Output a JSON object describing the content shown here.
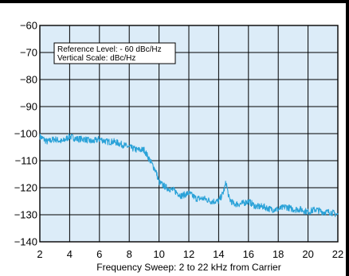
{
  "chart_data": {
    "type": "line",
    "title": "",
    "xlabel": "Frequency Sweep: 2 to 22 kHz from Carrier",
    "ylabel": "",
    "xlim": [
      2,
      22
    ],
    "ylim": [
      -140,
      -60
    ],
    "x_ticks": [
      2,
      4,
      6,
      8,
      10,
      12,
      14,
      16,
      18,
      20,
      22
    ],
    "y_ticks": [
      -60,
      -70,
      -80,
      -90,
      -100,
      -110,
      -120,
      -130,
      -140
    ],
    "x_tick_labels": [
      "2",
      "4",
      "6",
      "8",
      "10",
      "12",
      "14",
      "16",
      "18",
      "20",
      "22"
    ],
    "y_tick_labels": [
      "−60",
      "−70",
      "−80",
      "−90",
      "−100",
      "−110",
      "−120",
      "−130",
      "−140"
    ],
    "grid": true,
    "annotations": [
      "Reference Level: - 60 dBc/Hz",
      "Vertical Scale: dBc/Hz"
    ],
    "colors": {
      "plot_background": "#dcecf8",
      "trace": "#2aa2d8",
      "grid": "#000000"
    },
    "series": [
      {
        "x": [
          2.0,
          2.5,
          3.0,
          3.5,
          4.0,
          4.5,
          5.0,
          5.5,
          6.0,
          6.5,
          7.0,
          7.5,
          8.0,
          8.5,
          9.0,
          9.2,
          9.4,
          9.6,
          9.8,
          10.0,
          10.5,
          11.0,
          11.5,
          12.0,
          12.5,
          13.0,
          13.5,
          14.0,
          14.3,
          14.5,
          14.7,
          15.0,
          15.5,
          16.0,
          16.5,
          17.0,
          17.5,
          18.0,
          18.5,
          19.0,
          19.5,
          20.0,
          20.5,
          21.0,
          21.5,
          22.0
        ],
        "values": [
          -101,
          -103,
          -102,
          -103,
          -101,
          -102,
          -102,
          -103,
          -102,
          -103,
          -103,
          -104,
          -105,
          -106,
          -106,
          -108,
          -110,
          -112,
          -114,
          -118,
          -120,
          -121,
          -123,
          -122,
          -124,
          -124,
          -125,
          -125,
          -122,
          -118,
          -124,
          -126,
          -126,
          -125,
          -127,
          -127,
          -128,
          -128,
          -127,
          -128,
          -128,
          -129,
          -128,
          -129,
          -129,
          -130
        ]
      }
    ]
  }
}
